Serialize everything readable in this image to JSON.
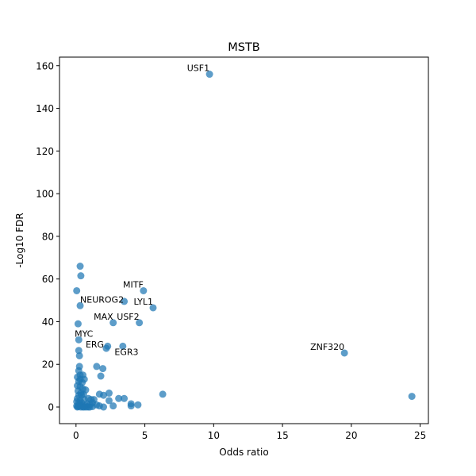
{
  "chart_data": {
    "type": "scatter",
    "title": "MSTB",
    "xlabel": "Odds ratio",
    "ylabel": "-Log10 FDR",
    "xlim": [
      -1.2,
      25.6
    ],
    "ylim": [
      -7.8,
      164
    ],
    "xticks": [
      0,
      5,
      10,
      15,
      20,
      25
    ],
    "yticks": [
      0,
      20,
      40,
      60,
      80,
      100,
      120,
      140,
      160
    ],
    "grid": false,
    "point_color": "#1f77b4",
    "series": [
      {
        "x": [
          9.7,
          19.5,
          24.4,
          0.3,
          0.35,
          0.05,
          4.9,
          3.5,
          0.3,
          5.6,
          2.7,
          4.6,
          0.15,
          0.2,
          0.2,
          0.25,
          2.2,
          2.3,
          3.4,
          0.25,
          0.3,
          1.5,
          1.95,
          0.2,
          0.5,
          1.8,
          0.1,
          0.3,
          0.6,
          0.2,
          0.45,
          0.1,
          0.3,
          0.5,
          0.7,
          0.15,
          0.35,
          0.55,
          0.2,
          0.4,
          0.9,
          1.1,
          1.7,
          2.0,
          2.4,
          0.1,
          0.3,
          0.6,
          1.3,
          2.4,
          3.1,
          3.5,
          6.3,
          0.05,
          0.2,
          0.4,
          0.8,
          1.2,
          1.5,
          0.3,
          0.7,
          1.0,
          4.0,
          4.5,
          0.05,
          0.2,
          0.45,
          0.75,
          1.0,
          1.7,
          2.0,
          2.7,
          4.0,
          0.1,
          0.5,
          0.9,
          1.2,
          0.15,
          0.35,
          0.6
        ],
        "y": [
          156,
          25.3,
          5,
          66,
          61.5,
          54.5,
          54.5,
          49.5,
          47.5,
          46.5,
          39.5,
          39.5,
          39,
          31.5,
          26.5,
          24,
          27.5,
          28.5,
          28.5,
          19,
          15,
          19,
          18,
          17,
          15,
          14.5,
          14,
          13,
          13,
          12,
          11.5,
          10,
          9.5,
          8.5,
          8,
          7.5,
          6.5,
          6,
          5.5,
          5.5,
          4,
          3.5,
          6,
          5.5,
          6.5,
          4,
          3,
          3.5,
          3.5,
          3,
          4,
          4,
          6,
          2.5,
          2,
          2,
          1.5,
          2,
          1,
          1,
          0.5,
          1,
          1.5,
          1,
          0.5,
          0.5,
          0.5,
          0,
          0,
          0.5,
          0,
          0.5,
          0.5,
          0,
          0,
          0,
          0.2,
          0.2,
          0,
          0
        ]
      }
    ],
    "annotations": [
      {
        "text": "USF1",
        "x": 9.7,
        "y": 156,
        "anchor": "end"
      },
      {
        "text": "ZNF320",
        "x": 19.5,
        "y": 25.3,
        "anchor": "end"
      },
      {
        "text": "MITF",
        "x": 4.9,
        "y": 54.5,
        "anchor": "end"
      },
      {
        "text": "NEUROG2",
        "x": 0.3,
        "y": 47.5,
        "anchor": "start"
      },
      {
        "text": "LYL1",
        "x": 5.6,
        "y": 46.5,
        "anchor": "end"
      },
      {
        "text": "MAX",
        "x": 2.7,
        "y": 39.5,
        "anchor": "end"
      },
      {
        "text": "USF2",
        "x": 4.6,
        "y": 39.5,
        "anchor": "end"
      },
      {
        "text": "MYC",
        "x": -0.1,
        "y": 31.5,
        "anchor": "start"
      },
      {
        "text": "ERG",
        "x": 0.7,
        "y": 26.5,
        "anchor": "start"
      },
      {
        "text": "EGR3",
        "x": 2.8,
        "y": 22.8,
        "anchor": "start"
      }
    ]
  }
}
